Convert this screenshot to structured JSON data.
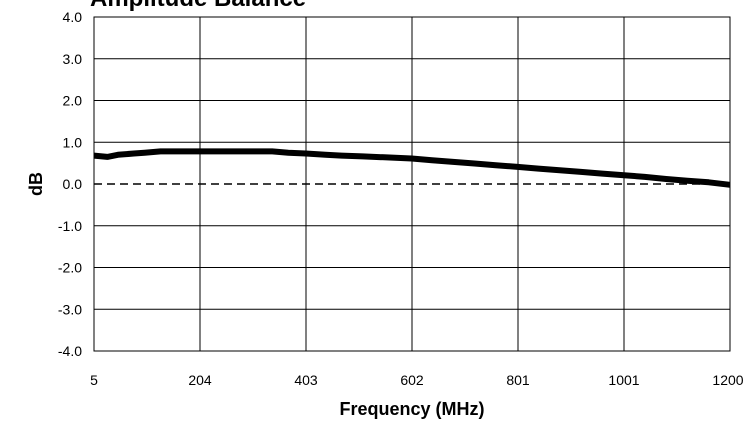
{
  "chart_data": {
    "type": "line",
    "title": "Amplitude Balance",
    "xlabel": "Frequency (MHz)",
    "ylabel": "dB",
    "x_tick_labels": [
      "5",
      "204",
      "403",
      "602",
      "801",
      "1001",
      "1200"
    ],
    "y_tick_labels": [
      "4.0",
      "3.0",
      "2.0",
      "1.0",
      "0.0",
      "-1.0",
      "-2.0",
      "-3.0",
      "-4.0"
    ],
    "xlim": [
      5,
      1200
    ],
    "ylim": [
      -4,
      4
    ],
    "grid": true,
    "legend": "none",
    "series": [
      {
        "color": "#000000",
        "x": [
          5,
          30,
          50,
          80,
          100,
          130,
          160,
          204,
          250,
          300,
          340,
          370,
          403,
          440,
          470,
          510,
          550,
          602,
          640,
          680,
          720,
          760,
          801,
          840,
          880,
          920,
          960,
          1001,
          1040,
          1080,
          1120,
          1160,
          1200
        ],
        "y": [
          0.68,
          0.65,
          0.7,
          0.73,
          0.75,
          0.78,
          0.78,
          0.78,
          0.78,
          0.78,
          0.78,
          0.75,
          0.73,
          0.7,
          0.68,
          0.66,
          0.64,
          0.61,
          0.57,
          0.53,
          0.49,
          0.45,
          0.41,
          0.37,
          0.33,
          0.29,
          0.25,
          0.21,
          0.17,
          0.12,
          0.08,
          0.04,
          -0.02
        ]
      }
    ],
    "reference_line": {
      "y": 0,
      "style": "dashed"
    }
  }
}
